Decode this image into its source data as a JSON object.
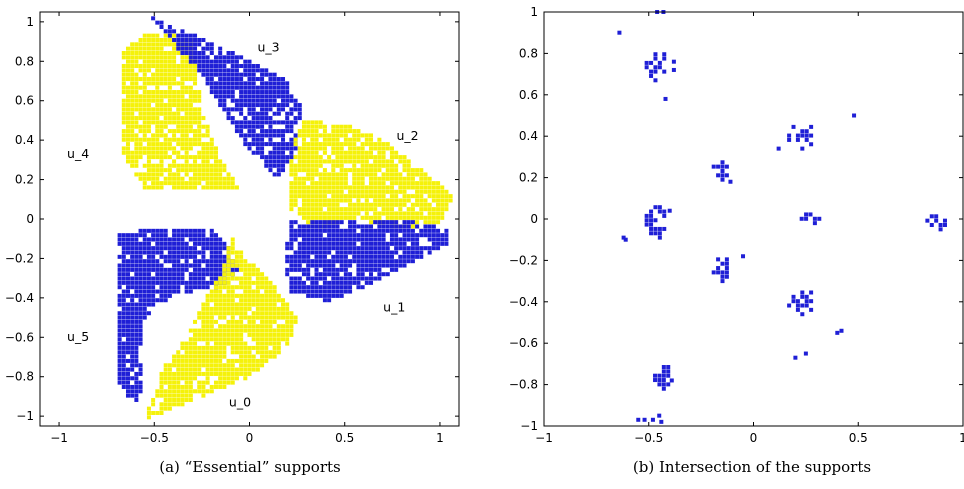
{
  "chart_data": [
    {
      "type": "scatter",
      "caption": "(a) “Essential” supports",
      "xlim": [
        -1.1,
        1.1
      ],
      "ylim": [
        -1.05,
        1.05
      ],
      "xticks": [
        -1,
        -0.5,
        0,
        0.5,
        1
      ],
      "yticks": [
        -1,
        -0.8,
        -0.6,
        -0.4,
        -0.2,
        0,
        0.2,
        0.4,
        0.6,
        0.8,
        1
      ],
      "xtick_labels": [
        "−1",
        "−0.5",
        "0",
        "0.5",
        "1"
      ],
      "ytick_labels": [
        "−1",
        "−0.8",
        "−0.6",
        "−0.4",
        "−0.2",
        "0",
        "0.2",
        "0.4",
        "0.6",
        "0.8",
        "1"
      ],
      "grid": false,
      "colors": {
        "blue": "#1f1fd6",
        "yellow": "#f5f20a"
      },
      "annotations": [
        {
          "text": "u_3",
          "x": 0.1,
          "y": 0.85
        },
        {
          "text": "u_2",
          "x": 0.83,
          "y": 0.4
        },
        {
          "text": "u_4",
          "x": -0.9,
          "y": 0.31
        },
        {
          "text": "u_1",
          "x": 0.76,
          "y": -0.47
        },
        {
          "text": "u_5",
          "x": -0.9,
          "y": -0.62
        },
        {
          "text": "u_0",
          "x": -0.05,
          "y": -0.95
        }
      ],
      "regions": [
        {
          "color": "yellow",
          "polygon": [
            [
              -0.68,
              0.85
            ],
            [
              -0.52,
              0.95
            ],
            [
              -0.3,
              0.92
            ],
            [
              -0.25,
              0.55
            ],
            [
              -0.15,
              0.3
            ],
            [
              -0.05,
              0.15
            ],
            [
              -0.55,
              0.15
            ],
            [
              -0.68,
              0.35
            ]
          ]
        },
        {
          "color": "blue",
          "polygon": [
            [
              -0.52,
              1.03
            ],
            [
              -0.45,
              1.0
            ],
            [
              -0.25,
              0.92
            ],
            [
              0.0,
              0.8
            ],
            [
              0.2,
              0.7
            ],
            [
              0.27,
              0.57
            ],
            [
              0.25,
              0.35
            ],
            [
              0.15,
              0.2
            ],
            [
              0.0,
              0.35
            ],
            [
              -0.15,
              0.55
            ],
            [
              -0.25,
              0.72
            ],
            [
              -0.45,
              0.95
            ]
          ]
        },
        {
          "color": "yellow",
          "polygon": [
            [
              0.28,
              0.5
            ],
            [
              0.5,
              0.48
            ],
            [
              0.7,
              0.4
            ],
            [
              0.9,
              0.25
            ],
            [
              1.08,
              0.12
            ],
            [
              1.0,
              -0.02
            ],
            [
              0.8,
              -0.05
            ],
            [
              0.55,
              0.0
            ],
            [
              0.35,
              -0.05
            ],
            [
              0.22,
              0.05
            ],
            [
              0.2,
              0.22
            ],
            [
              0.24,
              0.4
            ]
          ]
        },
        {
          "color": "blue",
          "polygon": [
            [
              0.22,
              0.0
            ],
            [
              0.4,
              0.0
            ],
            [
              0.6,
              -0.02
            ],
            [
              0.8,
              0.0
            ],
            [
              1.05,
              -0.05
            ],
            [
              1.05,
              -0.12
            ],
            [
              0.85,
              -0.22
            ],
            [
              0.6,
              -0.35
            ],
            [
              0.4,
              -0.42
            ],
            [
              0.22,
              -0.38
            ],
            [
              0.18,
              -0.2
            ]
          ]
        },
        {
          "color": "blue",
          "polygon": [
            [
              -0.7,
              -0.07
            ],
            [
              -0.45,
              -0.05
            ],
            [
              -0.2,
              -0.05
            ],
            [
              -0.1,
              -0.15
            ],
            [
              -0.05,
              -0.25
            ],
            [
              -0.15,
              -0.35
            ],
            [
              -0.4,
              -0.38
            ],
            [
              -0.55,
              -0.5
            ],
            [
              -0.58,
              -0.7
            ],
            [
              -0.55,
              -0.85
            ],
            [
              -0.6,
              -0.95
            ],
            [
              -0.7,
              -0.85
            ]
          ]
        },
        {
          "color": "yellow",
          "polygon": [
            [
              -0.1,
              -0.08
            ],
            [
              -0.02,
              -0.2
            ],
            [
              0.1,
              -0.3
            ],
            [
              0.25,
              -0.5
            ],
            [
              0.2,
              -0.65
            ],
            [
              0.0,
              -0.8
            ],
            [
              -0.3,
              -0.92
            ],
            [
              -0.55,
              -1.02
            ],
            [
              -0.45,
              -0.75
            ],
            [
              -0.3,
              -0.55
            ],
            [
              -0.2,
              -0.35
            ],
            [
              -0.12,
              -0.2
            ]
          ]
        }
      ]
    },
    {
      "type": "scatter",
      "caption": "(b) Intersection of the supports",
      "xlim": [
        -1,
        1
      ],
      "ylim": [
        -1,
        1
      ],
      "xticks": [
        -1,
        -0.5,
        0,
        0.5,
        1
      ],
      "yticks": [
        -1,
        -0.8,
        -0.6,
        -0.4,
        -0.2,
        0,
        0.2,
        0.4,
        0.6,
        0.8,
        1
      ],
      "xtick_labels": [
        "−1",
        "−0.5",
        "0",
        "0.5",
        "1"
      ],
      "ytick_labels": [
        "−1",
        "−0.8",
        "−0.6",
        "−0.4",
        "−0.2",
        "0",
        "0.2",
        "0.4",
        "0.6",
        "0.8",
        "1"
      ],
      "grid": false,
      "color": "#1f1fd6",
      "clusters": [
        {
          "cx": -0.46,
          "cy": 0.74,
          "rx": 0.05,
          "ry": 0.07
        },
        {
          "cx": -0.46,
          "cy": -0.01,
          "rx": 0.05,
          "ry": 0.08
        },
        {
          "cx": -0.43,
          "cy": -0.76,
          "rx": 0.04,
          "ry": 0.06
        },
        {
          "cx": -0.15,
          "cy": 0.24,
          "rx": 0.04,
          "ry": 0.05
        },
        {
          "cx": -0.15,
          "cy": -0.24,
          "rx": 0.04,
          "ry": 0.06
        },
        {
          "cx": 0.23,
          "cy": 0.4,
          "rx": 0.06,
          "ry": 0.06
        },
        {
          "cx": 0.23,
          "cy": -0.4,
          "rx": 0.06,
          "ry": 0.06
        },
        {
          "cx": 0.28,
          "cy": 0.01,
          "rx": 0.05,
          "ry": 0.03
        },
        {
          "cx": 0.88,
          "cy": -0.01,
          "rx": 0.05,
          "ry": 0.04
        }
      ],
      "points": [
        [
          -0.46,
          1.0
        ],
        [
          -0.43,
          1.0
        ],
        [
          -0.64,
          0.9
        ],
        [
          -0.38,
          0.76
        ],
        [
          -0.38,
          0.72
        ],
        [
          -0.42,
          0.58
        ],
        [
          0.48,
          0.5
        ],
        [
          0.12,
          0.34
        ],
        [
          -0.11,
          0.18
        ],
        [
          -0.62,
          -0.09
        ],
        [
          -0.61,
          -0.1
        ],
        [
          -0.4,
          0.04
        ],
        [
          -0.05,
          -0.18
        ],
        [
          0.42,
          -0.54
        ],
        [
          0.4,
          -0.55
        ],
        [
          0.25,
          -0.65
        ],
        [
          0.2,
          -0.67
        ],
        [
          -0.45,
          -0.95
        ],
        [
          -0.48,
          -0.97
        ],
        [
          -0.55,
          -0.97
        ],
        [
          -0.52,
          -0.97
        ],
        [
          -0.44,
          -0.98
        ],
        [
          -0.39,
          -0.78
        ]
      ]
    }
  ]
}
